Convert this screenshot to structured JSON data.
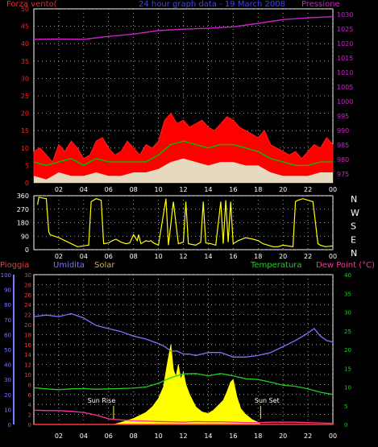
{
  "header": {
    "title": "24 hour graph data - 19 March 2008",
    "title_color": "#4040ff"
  },
  "colors": {
    "wind": "#ff2020",
    "gust_fill": "#ff0000",
    "wind_avg": "#00c000",
    "wind_min": "#e0ffe0",
    "pressure": "#cc22cc",
    "direction": "#ffff00",
    "humidity": "#7777ff",
    "temperature": "#22cc22",
    "dew_point": "#ff3399",
    "rain": "#ff3333",
    "solar": "#ffff00",
    "sun_marker": "#ffff00",
    "grid": "#c8c8c8",
    "axis": "#ffffff"
  },
  "chart_data": [
    {
      "type": "area",
      "title": "",
      "ylabel_left": "Forza vento(",
      "ylabel_right": "Pressione",
      "x_ticks": [
        "02",
        "04",
        "06",
        "08",
        "10",
        "12",
        "14",
        "16",
        "18",
        "20",
        "22",
        "00"
      ],
      "xlim": [
        0,
        24
      ],
      "ylim_left": [
        0,
        50
      ],
      "left_ticks": [
        0,
        5,
        10,
        15,
        20,
        25,
        30,
        35,
        40,
        45,
        50
      ],
      "ylim_right": [
        972,
        1032
      ],
      "right_ticks": [
        975,
        980,
        985,
        990,
        995,
        1000,
        1005,
        1010,
        1015,
        1020,
        1025,
        1030
      ],
      "series": [
        {
          "name": "gust",
          "axis": "left",
          "x": [
            0,
            0.5,
            1,
            1.5,
            2,
            2.5,
            3,
            3.5,
            4,
            4.5,
            5,
            5.5,
            6,
            6.5,
            7,
            7.5,
            8,
            8.5,
            9,
            9.5,
            10,
            10.5,
            11,
            11.5,
            12,
            12.5,
            13,
            13.5,
            14,
            14.5,
            15,
            15.5,
            16,
            16.5,
            17,
            17.5,
            18,
            18.5,
            19,
            19.5,
            20,
            20.5,
            21,
            21.5,
            22,
            22.5,
            23,
            23.5,
            24
          ],
          "y": [
            9,
            10,
            8,
            6,
            11,
            9,
            12,
            10,
            7,
            8,
            12,
            13,
            10,
            8,
            9,
            12,
            10,
            8,
            11,
            10,
            12,
            18,
            20,
            17,
            18,
            16,
            17,
            18,
            16,
            15,
            17,
            19,
            18,
            16,
            15,
            14,
            13,
            15,
            11,
            10,
            9,
            8,
            9,
            7,
            9,
            11,
            10,
            13,
            11
          ]
        },
        {
          "name": "average",
          "axis": "left",
          "x": [
            0,
            1,
            2,
            3,
            4,
            5,
            6,
            7,
            8,
            9,
            10,
            11,
            12,
            13,
            14,
            15,
            16,
            17,
            18,
            19,
            20,
            21,
            22,
            23,
            24
          ],
          "y": [
            6,
            5,
            6,
            7,
            5,
            7,
            6,
            6,
            6,
            6,
            8,
            11,
            12,
            11,
            10,
            11,
            11,
            10,
            9,
            7,
            6,
            5,
            5,
            6,
            6
          ]
        },
        {
          "name": "minimum",
          "axis": "left",
          "x": [
            0,
            1,
            2,
            3,
            4,
            5,
            6,
            7,
            8,
            9,
            10,
            11,
            12,
            13,
            14,
            15,
            16,
            17,
            18,
            19,
            20,
            21,
            22,
            23,
            24
          ],
          "y": [
            2,
            1,
            3,
            2,
            2,
            3,
            2,
            2,
            3,
            3,
            4,
            6,
            7,
            6,
            5,
            6,
            6,
            5,
            5,
            3,
            2,
            2,
            2,
            3,
            3
          ]
        },
        {
          "name": "pressure",
          "axis": "right",
          "x": [
            0,
            2,
            4,
            6,
            8,
            10,
            12,
            14,
            16,
            18,
            20,
            22,
            24
          ],
          "y": [
            1021.5,
            1021.6,
            1021.5,
            1022.5,
            1023.3,
            1024.5,
            1025.0,
            1025.3,
            1025.8,
            1027.0,
            1028.3,
            1028.9,
            1029.3
          ]
        }
      ]
    },
    {
      "type": "line",
      "title": "",
      "x_ticks": [
        "02",
        "04",
        "06",
        "08",
        "10",
        "12",
        "14",
        "16",
        "18",
        "20",
        "22",
        "00"
      ],
      "xlim": [
        0,
        24
      ],
      "ylim": [
        0,
        360
      ],
      "left_ticks": [
        0,
        90,
        180,
        270,
        360
      ],
      "right_labels": [
        "N",
        "W",
        "S",
        "E",
        "N"
      ],
      "series": [
        {
          "name": "direction",
          "x": [
            0.3,
            0.4,
            1.0,
            1.2,
            1.3,
            2.0,
            2.5,
            3.0,
            3.5,
            4.0,
            4.4,
            4.6,
            5.0,
            5.4,
            5.6,
            6.0,
            6.3,
            6.6,
            7.0,
            7.4,
            7.7,
            8.0,
            8.3,
            8.4,
            8.6,
            9.0,
            9.2,
            9.4,
            9.6,
            10.0,
            10.6,
            10.8,
            11.2,
            11.6,
            12.0,
            12.2,
            12.4,
            13.0,
            13.4,
            13.6,
            13.8,
            14.2,
            14.6,
            15.0,
            15.2,
            15.4,
            15.6,
            15.8,
            16.0,
            16.4,
            17.0,
            17.6,
            18.0,
            18.4,
            18.8,
            19.2,
            19.6,
            20.0,
            20.8,
            21.0,
            21.2,
            21.6,
            22.0,
            22.4,
            22.8,
            23.0,
            23.4,
            24.0
          ],
          "y": [
            300,
            350,
            340,
            120,
            100,
            80,
            60,
            40,
            20,
            25,
            30,
            320,
            340,
            330,
            40,
            45,
            60,
            70,
            50,
            40,
            45,
            100,
            60,
            100,
            40,
            60,
            55,
            60,
            45,
            30,
            340,
            30,
            320,
            40,
            50,
            320,
            40,
            30,
            50,
            320,
            45,
            40,
            30,
            320,
            40,
            330,
            50,
            320,
            40,
            60,
            80,
            70,
            60,
            40,
            30,
            20,
            20,
            30,
            20,
            320,
            330,
            340,
            330,
            320,
            40,
            30,
            20,
            25
          ]
        }
      ]
    },
    {
      "type": "line",
      "title": "",
      "left_labels": [
        "Pioggia",
        "Umidita",
        "Solar"
      ],
      "right_labels": [
        "Temperatura",
        "Dew Point (°C)"
      ],
      "x_ticks": [
        "02",
        "04",
        "06",
        "08",
        "10",
        "12",
        "14",
        "16",
        "18",
        "20",
        "22",
        "00"
      ],
      "xlim": [
        0,
        24
      ],
      "humidity_axis": {
        "ylim": [
          0,
          100
        ],
        "ticks": [
          0,
          10,
          20,
          30,
          40,
          50,
          60,
          70,
          80,
          90,
          100
        ]
      },
      "rain_axis": {
        "ylim": [
          0,
          30
        ],
        "ticks": [
          0,
          2,
          4,
          6,
          8,
          10,
          12,
          14,
          16,
          18,
          20,
          22,
          24,
          26,
          28,
          30
        ]
      },
      "temp_axis": {
        "ylim": [
          0,
          40
        ],
        "ticks": [
          0,
          5,
          10,
          15,
          20,
          25,
          30,
          35,
          40
        ]
      },
      "annotations": [
        {
          "text": "Sun Rise",
          "x": 6.4
        },
        {
          "text": "Sun Set",
          "x": 18.2
        }
      ],
      "series": [
        {
          "name": "humidity",
          "axis": "humidity",
          "x": [
            0,
            1,
            2,
            3,
            4,
            5,
            6,
            7,
            8,
            9,
            10,
            10.5,
            11,
            11.5,
            12,
            12.5,
            13,
            14,
            15,
            16,
            17,
            18,
            19,
            20,
            21,
            22,
            22.5,
            23,
            23.5,
            24
          ],
          "y": [
            72,
            73,
            72,
            74,
            71,
            66,
            64,
            62,
            59,
            57,
            54,
            52,
            49,
            49,
            47,
            47,
            46,
            48,
            48,
            45,
            45,
            46,
            48,
            52,
            56,
            61,
            64,
            59,
            56,
            55
          ]
        },
        {
          "name": "temperature",
          "axis": "temp",
          "x": [
            0,
            1,
            2,
            3,
            4,
            5,
            6,
            7,
            8,
            9,
            10,
            11,
            12,
            13,
            14,
            15,
            16,
            17,
            18,
            19,
            20,
            21,
            22,
            23,
            24
          ],
          "y": [
            9.8,
            9.5,
            9.3,
            9.5,
            9.6,
            9.4,
            9.5,
            9.6,
            9.7,
            10.0,
            11.0,
            12.5,
            13.5,
            13.6,
            13.0,
            13.6,
            13.0,
            12.2,
            12.0,
            11.3,
            10.5,
            10.2,
            9.5,
            8.6,
            8.0
          ]
        },
        {
          "name": "dew_point",
          "axis": "temp",
          "x": [
            0,
            1,
            2,
            3,
            4,
            5,
            6,
            7,
            8,
            9,
            10,
            11,
            12,
            13,
            14,
            15,
            16,
            17,
            18,
            19,
            20,
            21,
            22,
            23,
            24
          ],
          "y": [
            3.8,
            3.7,
            3.7,
            3.5,
            3.2,
            2.5,
            1.5,
            1.2,
            1.0,
            0.9,
            0.8,
            0.7,
            0.6,
            0.8,
            0.7,
            0.7,
            0.6,
            0.5,
            0.5,
            0.6,
            0.6,
            0.6,
            0.5,
            0.4,
            0.3
          ]
        },
        {
          "name": "solar",
          "axis": "rain",
          "x": [
            6.4,
            7,
            7.5,
            8,
            8.5,
            9,
            9.5,
            10,
            10.4,
            10.7,
            11,
            11.2,
            11.4,
            11.6,
            11.8,
            12,
            12.2,
            12.5,
            13,
            13.5,
            14,
            14.4,
            14.8,
            15.2,
            15.5,
            15.8,
            16,
            16.3,
            16.6,
            17,
            17.5,
            18,
            18.2
          ],
          "y": [
            0,
            0.4,
            0.8,
            1.2,
            1.8,
            2.4,
            3.5,
            5.2,
            7.5,
            12,
            16,
            11,
            9.5,
            12,
            9,
            10.5,
            8,
            6,
            3.5,
            2.5,
            2.2,
            2.8,
            3.8,
            4.8,
            6.5,
            8.5,
            9,
            5.5,
            3.2,
            2,
            1,
            0.4,
            0
          ]
        },
        {
          "name": "rain",
          "axis": "rain",
          "x": [
            0,
            24
          ],
          "y": [
            0,
            0
          ]
        }
      ]
    }
  ]
}
